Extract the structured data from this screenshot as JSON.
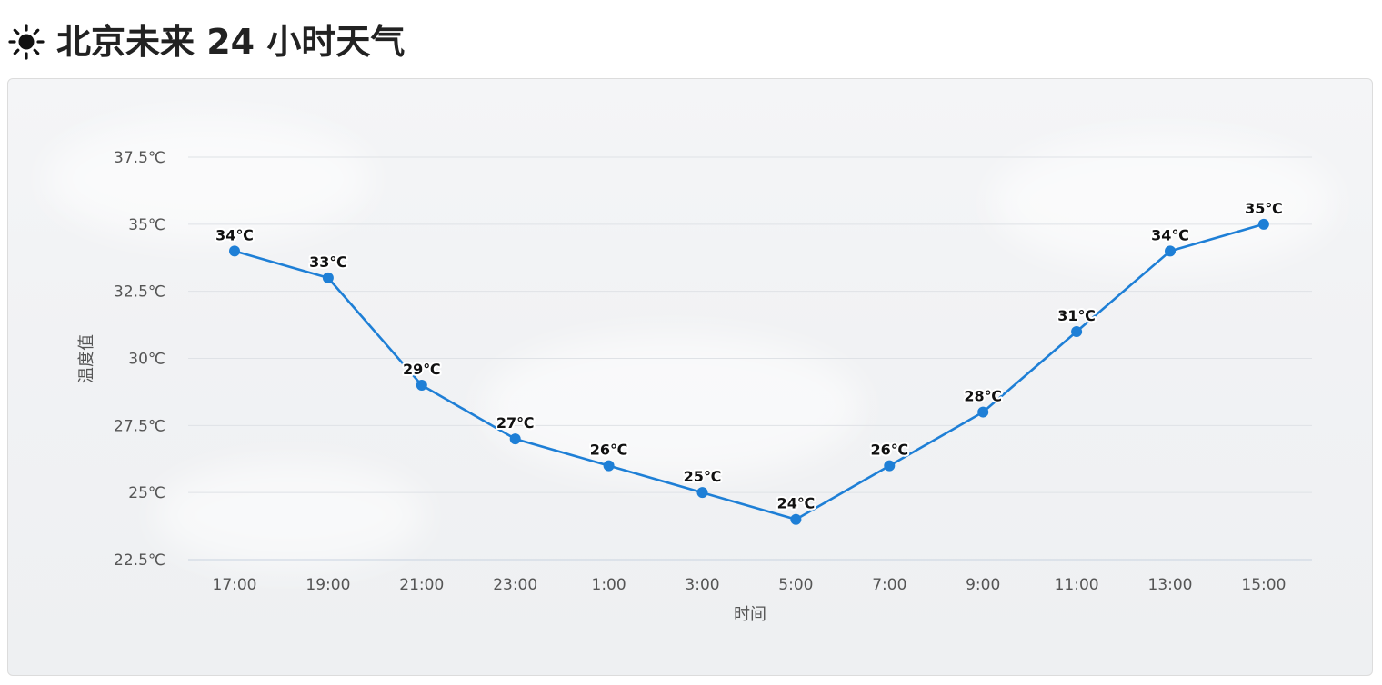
{
  "header": {
    "icon": "sun-icon",
    "title": "北京未来 24 小时天气"
  },
  "colors": {
    "line": "#1e7fd6",
    "grid": "#dfe2e6",
    "title": "#222222"
  },
  "chart_data": {
    "type": "line",
    "categories": [
      "17:00",
      "19:00",
      "21:00",
      "23:00",
      "1:00",
      "3:00",
      "5:00",
      "7:00",
      "9:00",
      "11:00",
      "13:00",
      "15:00"
    ],
    "values": [
      34,
      33,
      29,
      27,
      26,
      25,
      24,
      26,
      28,
      31,
      34,
      35
    ],
    "data_labels": [
      "34℃",
      "33℃",
      "29℃",
      "27℃",
      "26℃",
      "25℃",
      "24℃",
      "26℃",
      "28℃",
      "31℃",
      "34℃",
      "35℃"
    ],
    "xlabel": "时间",
    "ylabel": "温度值",
    "ylim": [
      22.5,
      37.5
    ],
    "yticks": [
      22.5,
      25,
      27.5,
      30,
      32.5,
      35,
      37.5
    ],
    "ytick_labels": [
      "22.5℃",
      "25℃",
      "27.5℃",
      "30℃",
      "32.5℃",
      "35℃",
      "37.5℃"
    ],
    "grid": true,
    "legend": false
  }
}
